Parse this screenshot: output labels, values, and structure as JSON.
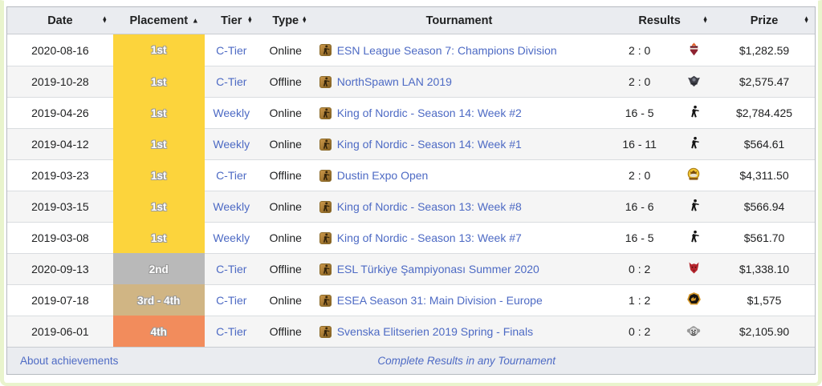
{
  "colors": {
    "link": "#4d6ac4",
    "placement_gold": "#fcd43c",
    "placement_silver": "#b9b9b9",
    "placement_bronze_tan": "#d0b584",
    "placement_orange": "#f28c5c",
    "header_background": "#eaecf0",
    "row_alternate_background": "#f5f5f5",
    "frame_green": "#e9f4cd"
  },
  "table": {
    "columns": [
      {
        "id": "date",
        "label": "Date",
        "sortable": true,
        "sort": "none",
        "span": 1
      },
      {
        "id": "placement",
        "label": "Placement",
        "sortable": true,
        "sort": "asc",
        "span": 1
      },
      {
        "id": "tier",
        "label": "Tier",
        "sortable": true,
        "sort": "none",
        "span": 1
      },
      {
        "id": "type",
        "label": "Type",
        "sortable": true,
        "sort": "none",
        "span": 1
      },
      {
        "id": "tournament",
        "label": "Tournament",
        "sortable": false,
        "sort": "none",
        "span": 1
      },
      {
        "id": "results",
        "label": "Results",
        "sortable": true,
        "sort": "none",
        "span": 2
      },
      {
        "id": "prize",
        "label": "Prize",
        "sortable": true,
        "sort": "none",
        "span": 1
      }
    ],
    "game_icon": "counter-strike-game-icon",
    "rows": [
      {
        "date": "2020-08-16",
        "placement": "1st",
        "placement_color": "gold",
        "tier": "C-Tier",
        "type": "Online",
        "tournament": "ESN League Season 7: Champions Division",
        "score": "2 : 0",
        "opponent_logo": "red-flame-crest",
        "prize": "$1,282.59"
      },
      {
        "date": "2019-10-28",
        "placement": "1st",
        "placement_color": "gold",
        "tier": "C-Tier",
        "type": "Offline",
        "tournament": "NorthSpawn LAN 2019",
        "score": "2 : 0",
        "opponent_logo": "dark-winged-crest",
        "prize": "$2,575.47"
      },
      {
        "date": "2019-04-26",
        "placement": "1st",
        "placement_color": "gold",
        "tier": "Weekly",
        "type": "Online",
        "tournament": "King of Nordic - Season 14: Week #2",
        "score": "16 - 5",
        "opponent_logo": "ct-player-silhouette",
        "prize": "$2,784.425"
      },
      {
        "date": "2019-04-12",
        "placement": "1st",
        "placement_color": "gold",
        "tier": "Weekly",
        "type": "Online",
        "tournament": "King of Nordic - Season 14: Week #1",
        "score": "16 - 11",
        "opponent_logo": "ct-player-silhouette",
        "prize": "$564.61"
      },
      {
        "date": "2019-03-23",
        "placement": "1st",
        "placement_color": "gold",
        "tier": "C-Tier",
        "type": "Offline",
        "tournament": "Dustin Expo Open",
        "score": "2 : 0",
        "opponent_logo": "granit-badge",
        "prize": "$4,311.50"
      },
      {
        "date": "2019-03-15",
        "placement": "1st",
        "placement_color": "gold",
        "tier": "Weekly",
        "type": "Online",
        "tournament": "King of Nordic - Season 13: Week #8",
        "score": "16 - 6",
        "opponent_logo": "ct-player-silhouette",
        "prize": "$566.94"
      },
      {
        "date": "2019-03-08",
        "placement": "1st",
        "placement_color": "gold",
        "tier": "Weekly",
        "type": "Online",
        "tournament": "King of Nordic - Season 13: Week #7",
        "score": "16 - 5",
        "opponent_logo": "ct-player-silhouette",
        "prize": "$561.70"
      },
      {
        "date": "2020-09-13",
        "placement": "2nd",
        "placement_color": "silver",
        "tier": "C-Tier",
        "type": "Offline",
        "tournament": "ESL Türkiye Şampiyonası Summer 2020",
        "score": "0 : 2",
        "opponent_logo": "red-demon",
        "prize": "$1,338.10"
      },
      {
        "date": "2019-07-18",
        "placement": "3rd - 4th",
        "placement_color": "tan",
        "tier": "C-Tier",
        "type": "Online",
        "tournament": "ESEA Season 31: Main Division - Europe",
        "score": "1 : 2",
        "opponent_logo": "gold-heptagon",
        "prize": "$1,575"
      },
      {
        "date": "2019-06-01",
        "placement": "4th",
        "placement_color": "orange",
        "tier": "C-Tier",
        "type": "Offline",
        "tournament": "Svenska Elitserien 2019 Spring - Finals",
        "score": "0 : 2",
        "opponent_logo": "clown-face",
        "prize": "$2,105.90"
      }
    ]
  },
  "footer": {
    "about_label": "About achievements",
    "complete_label": "Complete Results in any Tournament"
  }
}
